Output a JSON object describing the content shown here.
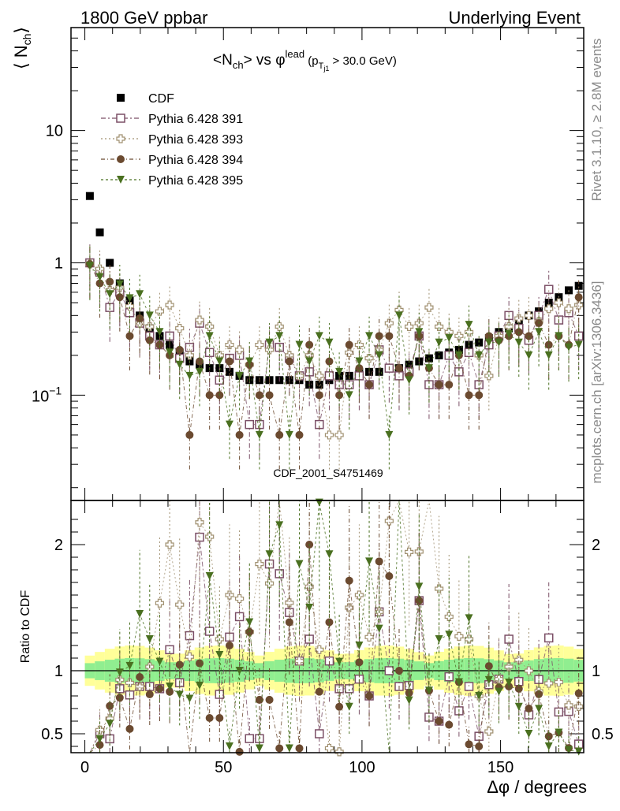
{
  "header": {
    "left": "1800 GeV ppbar",
    "right": "Underlying Event"
  },
  "side": {
    "rivet": "Rivet 3.1.10, ≥ 2.8M events",
    "mcplots": "mcplots.cern.ch [arXiv:1306.3436]"
  },
  "watermark": "CDF_2001_S4751469",
  "chart_data": {
    "type": "scatter",
    "title": "<Nch> vs φlead (pTj1 > 30.0 GeV)",
    "title_parts": {
      "main": "<N",
      "sub1": "ch",
      "mid": "> vs φ",
      "sup": "lead",
      "p_open": " (p",
      "p_sub": "T",
      "p_subsub": "j1",
      "tail": " > 30.0 GeV)"
    },
    "ylabel": "⟨ N",
    "ylabel_sub": "ch",
    "ylabel_close": "⟩",
    "ratio_ylabel": "Ratio to CDF",
    "xlabel": "Δφ / degrees",
    "xlim": [
      -5,
      180
    ],
    "ylim": [
      0.016,
      60
    ],
    "ratio_ylim": [
      0.35,
      2.35
    ],
    "yscale": "log",
    "x_ticks": [
      0,
      50,
      100,
      150
    ],
    "x_tick_labels": [
      "0",
      "50",
      "100",
      "150"
    ],
    "y_ticks": [
      1,
      10
    ],
    "y_tick_labels": [
      "1",
      "10"
    ],
    "y_tick_label_minus1": {
      "base": "10",
      "exp": "−1"
    },
    "ratio_y_ticks": [
      0.5,
      1,
      2
    ],
    "ratio_y_tick_labels": [
      "0.5",
      "1",
      "2"
    ],
    "legend_position": "top-left",
    "x": [
      1.8,
      5.4,
      9.0,
      12.6,
      16.2,
      19.8,
      23.4,
      27.0,
      30.6,
      34.2,
      37.8,
      41.4,
      45.0,
      48.6,
      52.2,
      55.8,
      59.4,
      63.0,
      66.6,
      70.2,
      73.8,
      77.4,
      81.0,
      84.6,
      88.2,
      91.8,
      95.4,
      99.0,
      102.6,
      106.2,
      109.8,
      113.4,
      117.0,
      120.6,
      124.2,
      127.8,
      131.4,
      135.0,
      138.6,
      142.2,
      145.8,
      149.4,
      153.0,
      156.6,
      160.2,
      163.8,
      167.4,
      171.0,
      174.6,
      178.2
    ],
    "series": [
      {
        "name": "CDF",
        "color": "#000000",
        "marker": "square-filled",
        "y": [
          3.2,
          1.7,
          1.0,
          0.7,
          0.52,
          0.4,
          0.32,
          0.28,
          0.24,
          0.21,
          0.18,
          0.17,
          0.16,
          0.16,
          0.15,
          0.14,
          0.13,
          0.13,
          0.13,
          0.13,
          0.13,
          0.13,
          0.12,
          0.12,
          0.13,
          0.14,
          0.14,
          0.15,
          0.15,
          0.15,
          0.16,
          0.16,
          0.17,
          0.18,
          0.19,
          0.2,
          0.21,
          0.22,
          0.24,
          0.25,
          0.27,
          0.3,
          0.32,
          0.35,
          0.4,
          0.43,
          0.5,
          0.55,
          0.62,
          0.67
        ]
      },
      {
        "name": "Pythia 6.428 391",
        "color": "#7b4f66",
        "marker": "square-open",
        "y": [
          1.0,
          0.85,
          0.46,
          0.6,
          0.42,
          0.35,
          0.28,
          0.24,
          0.28,
          0.19,
          0.23,
          0.35,
          0.21,
          0.13,
          0.19,
          0.2,
          0.06,
          0.06,
          0.24,
          0.23,
          0.19,
          0.14,
          0.15,
          0.06,
          0.14,
          0.12,
          0.12,
          0.14,
          0.12,
          0.22,
          0.16,
          0.14,
          0.15,
          0.28,
          0.12,
          0.12,
          0.2,
          0.15,
          0.21,
          0.12,
          0.24,
          0.28,
          0.4,
          0.32,
          0.26,
          0.4,
          0.63,
          0.37,
          0.42,
          0.28
        ]
      },
      {
        "name": "Pythia 6.428 393",
        "color": "#a09070",
        "marker": "plus-open",
        "y": [
          0.98,
          0.9,
          0.62,
          0.65,
          0.47,
          0.35,
          0.33,
          0.43,
          0.48,
          0.32,
          0.2,
          0.37,
          0.33,
          0.2,
          0.24,
          0.22,
          0.17,
          0.24,
          0.22,
          0.33,
          0.2,
          0.14,
          0.2,
          0.14,
          0.05,
          0.05,
          0.21,
          0.24,
          0.19,
          0.22,
          0.35,
          0.44,
          0.33,
          0.35,
          0.46,
          0.33,
          0.3,
          0.28,
          0.3,
          0.2,
          0.14,
          0.28,
          0.33,
          0.38,
          0.4,
          0.36,
          0.45,
          0.5,
          0.45,
          0.48
        ]
      },
      {
        "name": "Pythia 6.428 394",
        "color": "#6b4a30",
        "marker": "circle-filled",
        "y": [
          0.98,
          0.7,
          0.72,
          0.55,
          0.28,
          0.38,
          0.26,
          0.24,
          0.2,
          0.22,
          0.05,
          0.18,
          0.1,
          0.1,
          0.18,
          0.05,
          0.17,
          0.1,
          0.1,
          0.05,
          0.18,
          0.05,
          0.24,
          0.1,
          0.18,
          0.1,
          0.24,
          0.16,
          0.12,
          0.28,
          0.28,
          0.16,
          0.14,
          0.28,
          0.16,
          0.12,
          0.12,
          0.2,
          0.1,
          0.1,
          0.28,
          0.26,
          0.28,
          0.3,
          0.28,
          0.35,
          0.24,
          0.28,
          0.24,
          0.55
        ]
      },
      {
        "name": "Pythia 6.428 395",
        "color": "#4a7020",
        "marker": "triangle-down-filled",
        "y": [
          0.95,
          0.78,
          0.58,
          0.69,
          0.54,
          0.58,
          0.4,
          0.3,
          0.21,
          0.17,
          0.14,
          0.15,
          0.28,
          0.18,
          0.06,
          0.14,
          0.18,
          0.05,
          0.25,
          0.28,
          0.05,
          0.24,
          0.18,
          0.28,
          0.25,
          0.15,
          0.1,
          0.18,
          0.28,
          0.2,
          0.05,
          0.4,
          0.13,
          0.3,
          0.16,
          0.25,
          0.27,
          0.2,
          0.34,
          0.2,
          0.25,
          0.25,
          0.29,
          0.25,
          0.2,
          0.3,
          0.2,
          0.28,
          0.23,
          0.24
        ]
      }
    ],
    "band_colors": {
      "inner": "#90ee90",
      "outer": "#ffff99"
    }
  }
}
